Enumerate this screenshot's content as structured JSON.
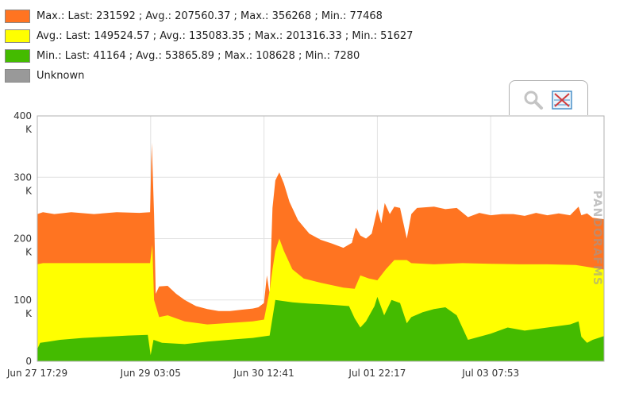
{
  "legend": [
    {
      "label": "Max.: Last: 231592 ; Avg.: 207560.37 ; Max.: 356268 ; Min.: 77468",
      "color": "#ff7421"
    },
    {
      "label": "Avg.: Last: 149524.57 ; Avg.: 135083.35 ; Max.: 201316.33 ; Min.: 51627",
      "color": "#ffff00"
    },
    {
      "label": "Min.: Last: 41164 ; Avg.: 53865.89 ; Max.: 108628 ; Min.: 7280",
      "color": "#44bb00"
    },
    {
      "label": "Unknown",
      "color": "#999999"
    }
  ],
  "toolbar": {
    "zoom_icon": "zoom-icon",
    "reset_icon": "reset-zoom-icon"
  },
  "watermark": "PANDORAFMS",
  "chart_data": {
    "type": "area",
    "stacked": false,
    "title": "",
    "xlabel": "",
    "ylabel": "",
    "ylim": [
      0,
      400000
    ],
    "xlim": [
      0,
      1
    ],
    "yticks": [
      {
        "value": 0,
        "lines": [
          "0"
        ]
      },
      {
        "value": 100000,
        "lines": [
          "100",
          "K"
        ]
      },
      {
        "value": 200000,
        "lines": [
          "200",
          "K"
        ]
      },
      {
        "value": 300000,
        "lines": [
          "300",
          "K"
        ]
      },
      {
        "value": 400000,
        "lines": [
          "400",
          "K"
        ]
      }
    ],
    "xticks": [
      {
        "pos": 0.0,
        "label": "Jun 27 17:29"
      },
      {
        "pos": 0.2,
        "label": "Jun 29 03:05"
      },
      {
        "pos": 0.4,
        "label": "Jun 30 12:41"
      },
      {
        "pos": 0.6,
        "label": "Jul 01 22:17"
      },
      {
        "pos": 0.8,
        "label": "Jul 03 07:53"
      }
    ],
    "grid": true,
    "series": [
      {
        "name": "Max.",
        "color": "#ff7421",
        "points": [
          [
            0,
            240000
          ],
          [
            0.01,
            243000
          ],
          [
            0.03,
            240000
          ],
          [
            0.06,
            243000
          ],
          [
            0.1,
            240000
          ],
          [
            0.14,
            243000
          ],
          [
            0.18,
            242000
          ],
          [
            0.199,
            243000
          ],
          [
            0.202,
            356268
          ],
          [
            0.206,
            240000
          ],
          [
            0.209,
            110000
          ],
          [
            0.215,
            122000
          ],
          [
            0.23,
            123000
          ],
          [
            0.245,
            110000
          ],
          [
            0.26,
            100000
          ],
          [
            0.28,
            90000
          ],
          [
            0.3,
            85000
          ],
          [
            0.32,
            82000
          ],
          [
            0.34,
            82000
          ],
          [
            0.36,
            84000
          ],
          [
            0.38,
            86000
          ],
          [
            0.39,
            88000
          ],
          [
            0.4,
            95000
          ],
          [
            0.405,
            140000
          ],
          [
            0.41,
            110000
          ],
          [
            0.415,
            250000
          ],
          [
            0.42,
            295000
          ],
          [
            0.427,
            308000
          ],
          [
            0.435,
            290000
          ],
          [
            0.445,
            260000
          ],
          [
            0.46,
            230000
          ],
          [
            0.48,
            208000
          ],
          [
            0.5,
            198000
          ],
          [
            0.52,
            192000
          ],
          [
            0.54,
            185000
          ],
          [
            0.555,
            193000
          ],
          [
            0.562,
            218000
          ],
          [
            0.57,
            205000
          ],
          [
            0.58,
            200000
          ],
          [
            0.59,
            208000
          ],
          [
            0.6,
            248000
          ],
          [
            0.607,
            225000
          ],
          [
            0.613,
            258000
          ],
          [
            0.622,
            240000
          ],
          [
            0.63,
            252000
          ],
          [
            0.64,
            250000
          ],
          [
            0.652,
            200000
          ],
          [
            0.66,
            240000
          ],
          [
            0.67,
            250000
          ],
          [
            0.7,
            252000
          ],
          [
            0.72,
            248000
          ],
          [
            0.74,
            250000
          ],
          [
            0.76,
            235000
          ],
          [
            0.78,
            242000
          ],
          [
            0.8,
            238000
          ],
          [
            0.82,
            240000
          ],
          [
            0.84,
            240000
          ],
          [
            0.86,
            237000
          ],
          [
            0.88,
            242000
          ],
          [
            0.9,
            238000
          ],
          [
            0.92,
            241000
          ],
          [
            0.94,
            238000
          ],
          [
            0.955,
            252000
          ],
          [
            0.96,
            238000
          ],
          [
            0.97,
            241000
          ],
          [
            0.98,
            234000
          ],
          [
            1,
            231592
          ]
        ]
      },
      {
        "name": "Avg.",
        "color": "#ffff00",
        "points": [
          [
            0,
            158000
          ],
          [
            0.01,
            160000
          ],
          [
            0.05,
            160000
          ],
          [
            0.1,
            160000
          ],
          [
            0.15,
            160000
          ],
          [
            0.199,
            160000
          ],
          [
            0.203,
            190000
          ],
          [
            0.206,
            100000
          ],
          [
            0.215,
            72000
          ],
          [
            0.23,
            75000
          ],
          [
            0.26,
            65000
          ],
          [
            0.3,
            60000
          ],
          [
            0.35,
            63000
          ],
          [
            0.38,
            65000
          ],
          [
            0.4,
            68000
          ],
          [
            0.41,
            115000
          ],
          [
            0.415,
            150000
          ],
          [
            0.42,
            180000
          ],
          [
            0.427,
            200000
          ],
          [
            0.435,
            180000
          ],
          [
            0.45,
            150000
          ],
          [
            0.47,
            135000
          ],
          [
            0.5,
            128000
          ],
          [
            0.54,
            120000
          ],
          [
            0.56,
            118000
          ],
          [
            0.57,
            140000
          ],
          [
            0.585,
            135000
          ],
          [
            0.6,
            132000
          ],
          [
            0.615,
            150000
          ],
          [
            0.63,
            165000
          ],
          [
            0.64,
            165000
          ],
          [
            0.652,
            165000
          ],
          [
            0.66,
            160000
          ],
          [
            0.7,
            158000
          ],
          [
            0.75,
            160000
          ],
          [
            0.8,
            159000
          ],
          [
            0.85,
            158000
          ],
          [
            0.9,
            158000
          ],
          [
            0.95,
            157000
          ],
          [
            1,
            149524
          ]
        ]
      },
      {
        "name": "Min.",
        "color": "#44bb00",
        "points": [
          [
            0,
            20000
          ],
          [
            0.005,
            30000
          ],
          [
            0.02,
            32000
          ],
          [
            0.04,
            35000
          ],
          [
            0.08,
            38000
          ],
          [
            0.12,
            40000
          ],
          [
            0.16,
            42000
          ],
          [
            0.195,
            43000
          ],
          [
            0.2,
            10000
          ],
          [
            0.205,
            35000
          ],
          [
            0.22,
            30000
          ],
          [
            0.26,
            28000
          ],
          [
            0.3,
            32000
          ],
          [
            0.35,
            36000
          ],
          [
            0.38,
            38000
          ],
          [
            0.41,
            42000
          ],
          [
            0.42,
            100000
          ],
          [
            0.45,
            96000
          ],
          [
            0.48,
            94000
          ],
          [
            0.52,
            92000
          ],
          [
            0.55,
            90000
          ],
          [
            0.56,
            70000
          ],
          [
            0.57,
            55000
          ],
          [
            0.58,
            65000
          ],
          [
            0.595,
            90000
          ],
          [
            0.6,
            105000
          ],
          [
            0.612,
            75000
          ],
          [
            0.625,
            100000
          ],
          [
            0.64,
            95000
          ],
          [
            0.652,
            62000
          ],
          [
            0.66,
            72000
          ],
          [
            0.68,
            80000
          ],
          [
            0.7,
            85000
          ],
          [
            0.72,
            88000
          ],
          [
            0.74,
            75000
          ],
          [
            0.76,
            35000
          ],
          [
            0.78,
            40000
          ],
          [
            0.8,
            45000
          ],
          [
            0.83,
            55000
          ],
          [
            0.86,
            50000
          ],
          [
            0.9,
            55000
          ],
          [
            0.94,
            60000
          ],
          [
            0.955,
            65000
          ],
          [
            0.96,
            40000
          ],
          [
            0.97,
            30000
          ],
          [
            0.98,
            35000
          ],
          [
            1,
            41164
          ]
        ]
      }
    ]
  }
}
